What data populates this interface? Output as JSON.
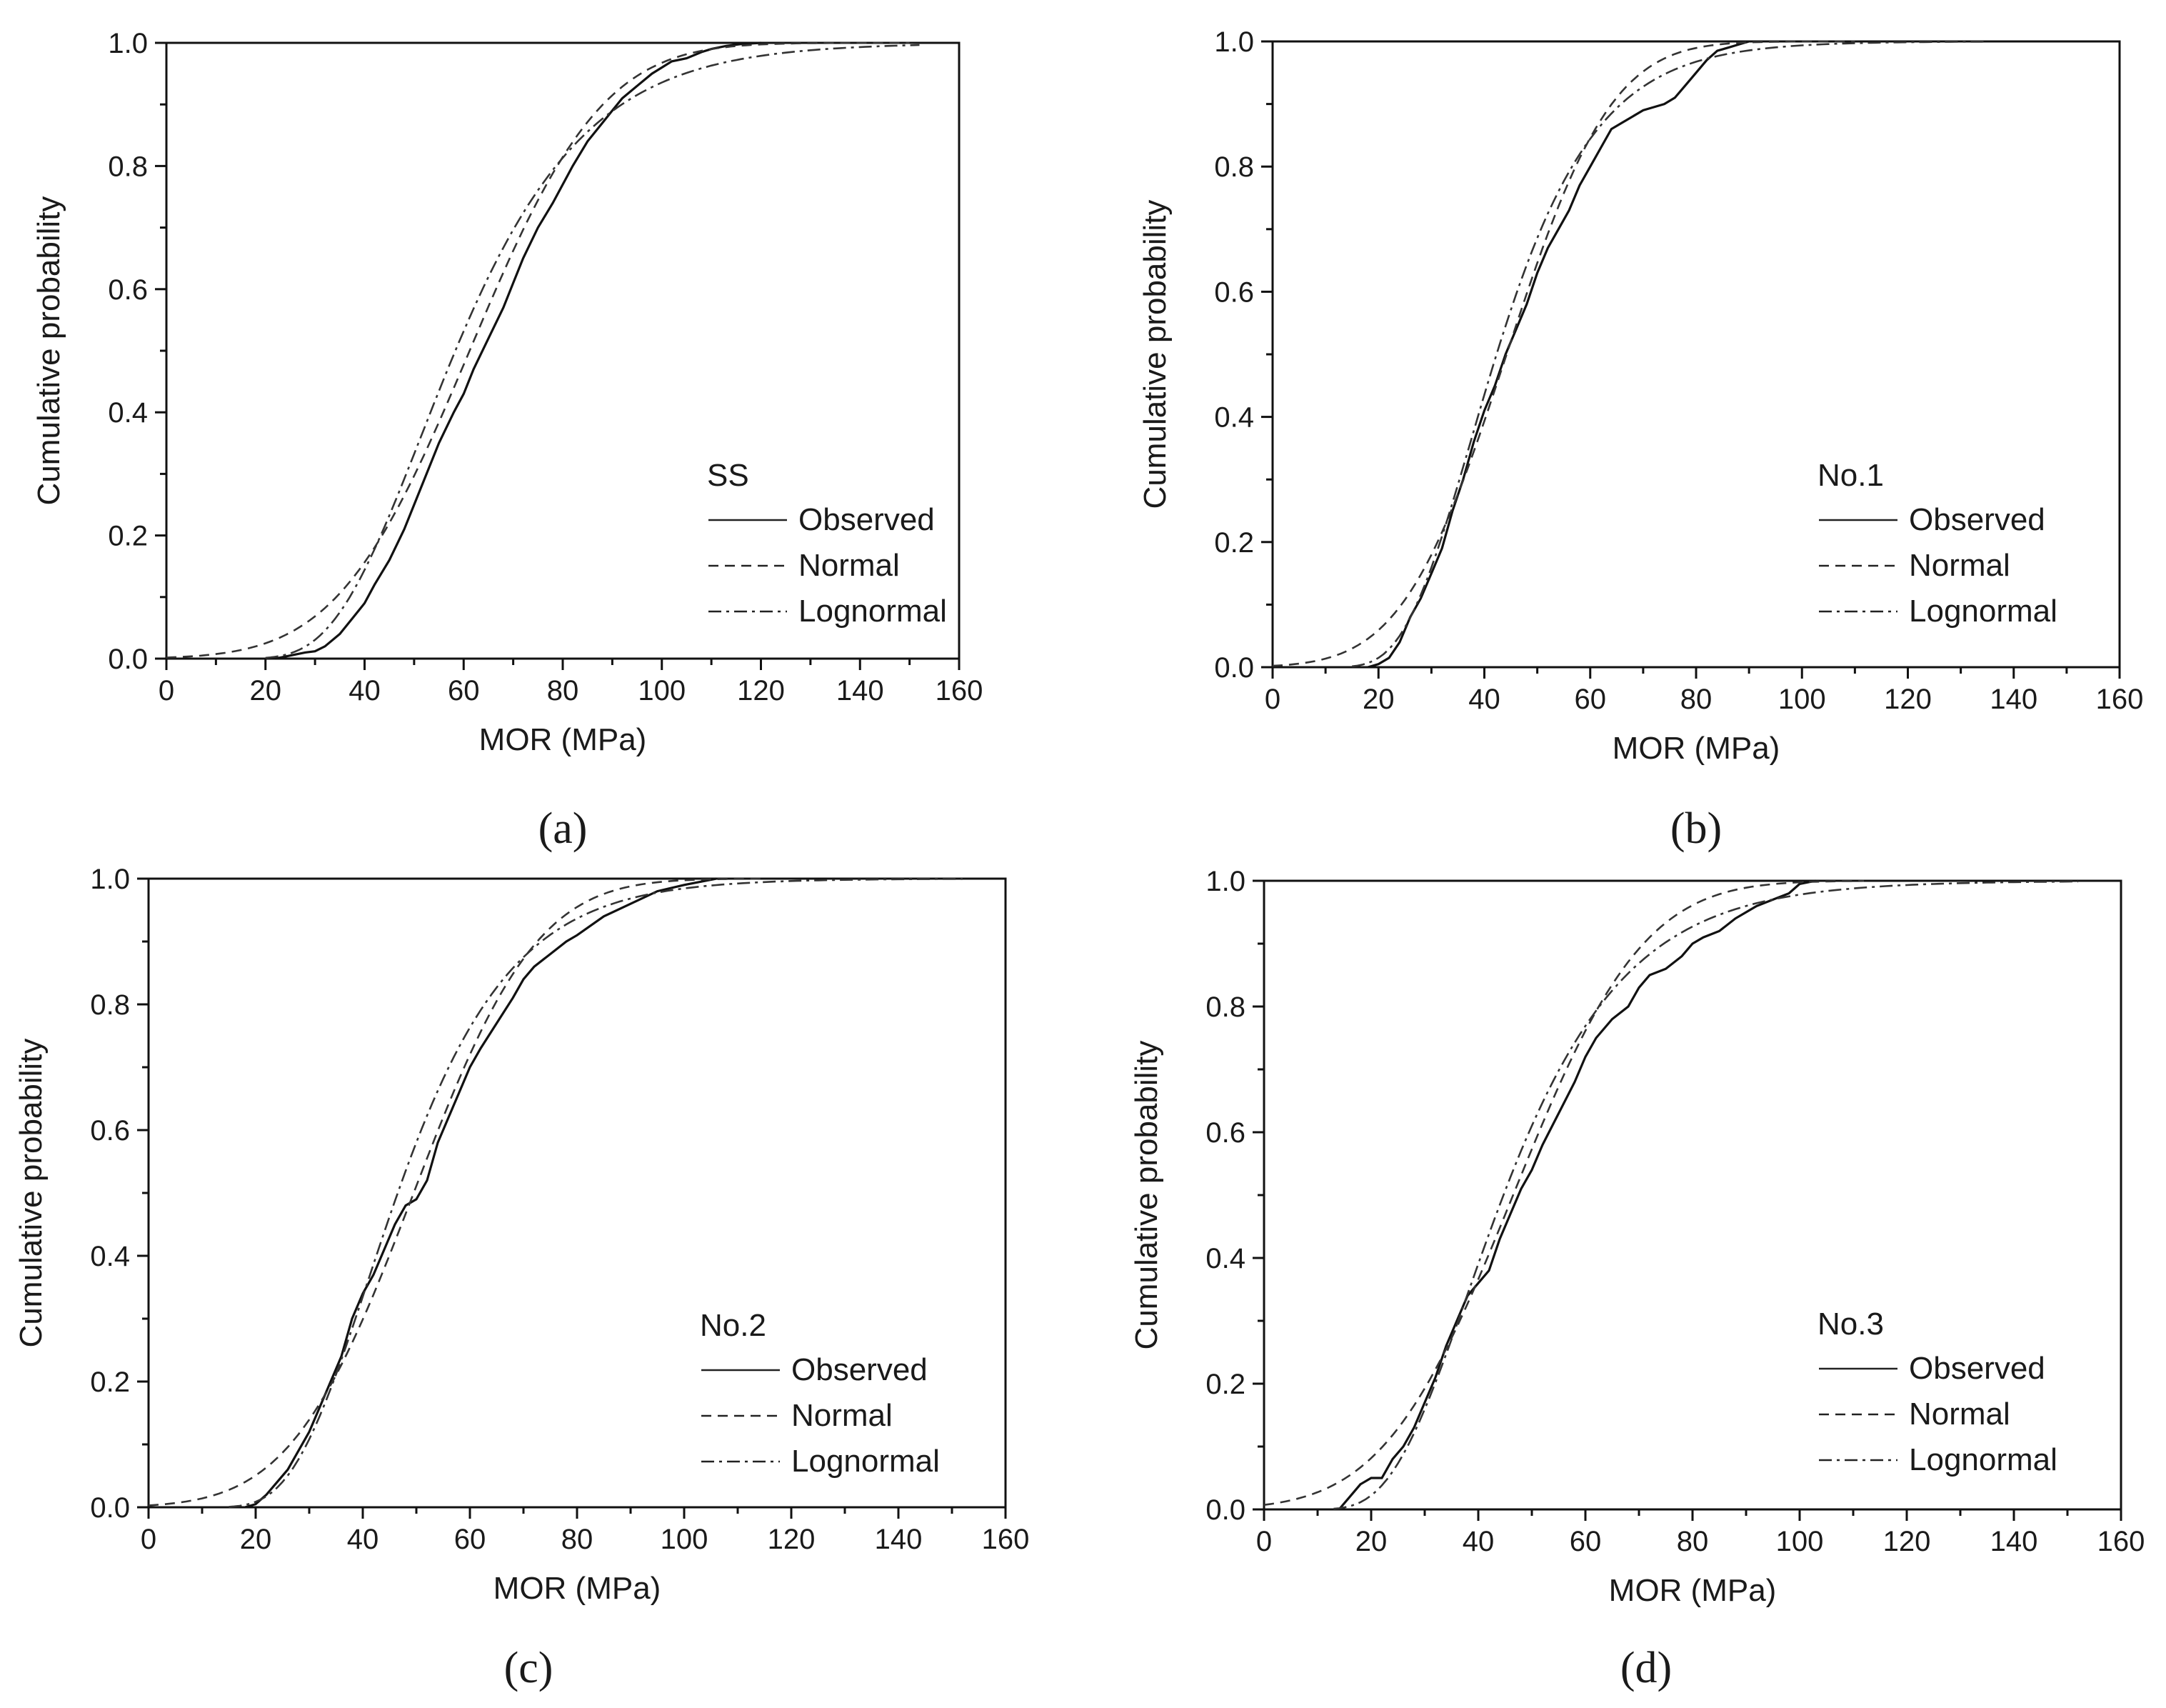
{
  "figure": {
    "title": ""
  },
  "chart_data": [
    {
      "type": "line",
      "panel_label": "(a)",
      "legend_title": "SS",
      "xlabel": "MOR (MPa)",
      "ylabel": "Cumulative probability",
      "xlim": [
        0,
        160
      ],
      "ylim": [
        0,
        1.0
      ],
      "xticks": [
        "0",
        "20",
        "40",
        "60",
        "80",
        "100",
        "120",
        "140",
        "160"
      ],
      "yticks": [
        "0.0",
        "0.2",
        "0.4",
        "0.6",
        "0.8",
        "1.0"
      ],
      "series": [
        {
          "name": "Observed",
          "style": "solid",
          "x": [
            22,
            25,
            28,
            30,
            32,
            35,
            38,
            40,
            42,
            45,
            48,
            50,
            52,
            55,
            58,
            60,
            62,
            65,
            68,
            70,
            72,
            75,
            78,
            80,
            82,
            85,
            88,
            90,
            92,
            95,
            98,
            100,
            102,
            105,
            108,
            110,
            113,
            116,
            120
          ],
          "y": [
            0,
            0.005,
            0.01,
            0.012,
            0.02,
            0.04,
            0.07,
            0.09,
            0.12,
            0.16,
            0.21,
            0.25,
            0.29,
            0.35,
            0.4,
            0.43,
            0.47,
            0.52,
            0.57,
            0.61,
            0.65,
            0.7,
            0.74,
            0.77,
            0.8,
            0.84,
            0.87,
            0.89,
            0.91,
            0.93,
            0.95,
            0.96,
            0.97,
            0.975,
            0.985,
            0.99,
            0.995,
            0.998,
            1.0
          ]
        },
        {
          "name": "Normal",
          "style": "dashed",
          "mean": 61.2,
          "sd": 21.0,
          "x_range": [
            0,
            150
          ]
        },
        {
          "name": "Lognormal",
          "style": "dashdot",
          "mu": 4.066,
          "sigma": 0.355,
          "x_range": [
            20,
            152
          ]
        }
      ]
    },
    {
      "type": "line",
      "panel_label": "(b)",
      "legend_title": "No.1",
      "xlabel": "MOR (MPa)",
      "ylabel": "Cumulative probability",
      "xlim": [
        0,
        160
      ],
      "ylim": [
        0,
        1.0
      ],
      "xticks": [
        "0",
        "20",
        "40",
        "60",
        "80",
        "100",
        "120",
        "140",
        "160"
      ],
      "yticks": [
        "0.0",
        "0.2",
        "0.4",
        "0.6",
        "0.8",
        "1.0"
      ],
      "series": [
        {
          "name": "Observed",
          "style": "solid",
          "x": [
            18,
            20,
            22,
            24,
            26,
            28,
            30,
            32,
            34,
            36,
            38,
            40,
            42,
            44,
            46,
            48,
            50,
            52,
            54,
            56,
            58,
            60,
            62,
            64,
            66,
            68,
            70,
            72,
            74,
            76,
            78,
            80,
            82,
            84,
            86,
            88,
            90
          ],
          "y": [
            0,
            0.005,
            0.015,
            0.04,
            0.08,
            0.11,
            0.15,
            0.19,
            0.25,
            0.3,
            0.36,
            0.41,
            0.45,
            0.5,
            0.54,
            0.58,
            0.63,
            0.67,
            0.7,
            0.73,
            0.77,
            0.8,
            0.83,
            0.86,
            0.87,
            0.88,
            0.89,
            0.895,
            0.9,
            0.91,
            0.93,
            0.95,
            0.97,
            0.985,
            0.99,
            0.995,
            1.0
          ]
        },
        {
          "name": "Normal",
          "style": "dashed",
          "mean": 44.2,
          "sd": 15.5,
          "x_range": [
            0,
            110
          ]
        },
        {
          "name": "Lognormal",
          "style": "dashdot",
          "mu": 3.745,
          "sigma": 0.345,
          "x_range": [
            15,
            135
          ]
        }
      ]
    },
    {
      "type": "line",
      "panel_label": "(c)",
      "legend_title": "No.2",
      "xlabel": "MOR (MPa)",
      "ylabel": "Cumulative probability",
      "xlim": [
        0,
        160
      ],
      "ylim": [
        0,
        1.0
      ],
      "xticks": [
        "0",
        "20",
        "40",
        "60",
        "80",
        "100",
        "120",
        "140",
        "160"
      ],
      "yticks": [
        "0.0",
        "0.2",
        "0.4",
        "0.6",
        "0.8",
        "1.0"
      ],
      "series": [
        {
          "name": "Observed",
          "style": "solid",
          "x": [
            18,
            20,
            22,
            24,
            26,
            28,
            30,
            32,
            34,
            36,
            38,
            40,
            42,
            44,
            46,
            48,
            50,
            52,
            54,
            56,
            58,
            60,
            62,
            65,
            68,
            70,
            72,
            75,
            78,
            80,
            85,
            90,
            95,
            100,
            103,
            106
          ],
          "y": [
            0,
            0.005,
            0.02,
            0.04,
            0.06,
            0.09,
            0.12,
            0.16,
            0.2,
            0.24,
            0.3,
            0.34,
            0.37,
            0.41,
            0.45,
            0.48,
            0.49,
            0.52,
            0.58,
            0.62,
            0.66,
            0.7,
            0.73,
            0.77,
            0.81,
            0.84,
            0.86,
            0.88,
            0.9,
            0.91,
            0.94,
            0.96,
            0.98,
            0.99,
            0.995,
            1.0
          ]
        },
        {
          "name": "Normal",
          "style": "dashed",
          "mean": 49.5,
          "sd": 18.0,
          "x_range": [
            0,
            115
          ]
        },
        {
          "name": "Lognormal",
          "style": "dashdot",
          "mu": 3.84,
          "sigma": 0.355,
          "x_range": [
            15,
            152
          ]
        }
      ]
    },
    {
      "type": "line",
      "panel_label": "(d)",
      "legend_title": "No.3",
      "xlabel": "MOR (MPa)",
      "ylabel": "Cumulative probability",
      "xlim": [
        0,
        160
      ],
      "ylim": [
        0,
        1.0
      ],
      "xticks": [
        "0",
        "20",
        "40",
        "60",
        "80",
        "100",
        "120",
        "140",
        "160"
      ],
      "yticks": [
        "0.0",
        "0.2",
        "0.4",
        "0.6",
        "0.8",
        "1.0"
      ],
      "series": [
        {
          "name": "Observed",
          "style": "solid",
          "x": [
            14,
            16,
            18,
            20,
            22,
            24,
            26,
            28,
            30,
            32,
            34,
            36,
            38,
            40,
            42,
            44,
            46,
            48,
            50,
            52,
            55,
            58,
            60,
            62,
            65,
            68,
            70,
            72,
            75,
            78,
            80,
            82,
            85,
            88,
            90,
            92,
            95,
            98,
            100,
            103
          ],
          "y": [
            0,
            0.02,
            0.04,
            0.05,
            0.05,
            0.08,
            0.1,
            0.13,
            0.17,
            0.21,
            0.26,
            0.3,
            0.34,
            0.36,
            0.38,
            0.43,
            0.47,
            0.51,
            0.54,
            0.58,
            0.63,
            0.68,
            0.72,
            0.75,
            0.78,
            0.8,
            0.83,
            0.85,
            0.86,
            0.88,
            0.9,
            0.91,
            0.92,
            0.94,
            0.95,
            0.96,
            0.97,
            0.98,
            0.995,
            1.0
          ]
        },
        {
          "name": "Normal",
          "style": "dashed",
          "mean": 46.5,
          "sd": 19.0,
          "x_range": [
            0,
            112
          ]
        },
        {
          "name": "Lognormal",
          "style": "dashdot",
          "mu": 3.8,
          "sigma": 0.4,
          "x_range": [
            13,
            152
          ]
        }
      ]
    }
  ]
}
